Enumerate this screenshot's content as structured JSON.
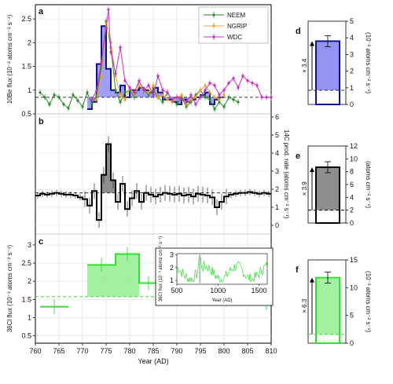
{
  "colors": {
    "neem": "#2a8a2a",
    "ngrip": "#f0a030",
    "wdc": "#c030c0",
    "be_fill": "#8080f0",
    "be_step": "#10108c",
    "c14_fill": "#7a7a7a",
    "cl_line": "#33dd33",
    "cl_fill": "#90ee90",
    "baseline": "#333333"
  },
  "chart_data": [
    {
      "panel": "a",
      "type": "line",
      "ylabel": "10Be flux (10⁻² atoms cm⁻² s⁻¹)",
      "ylim": [
        0.5,
        2.8
      ],
      "xlim": [
        760,
        810
      ],
      "yticks": [
        "0.5",
        "1",
        "1.5",
        "2",
        "2.5"
      ],
      "legend": [
        "NEEM",
        "NGRIP",
        "WDC"
      ],
      "legend_position": "top-right",
      "baseline": 0.85,
      "series": [
        {
          "name": "NEEM",
          "x": [
            761,
            762,
            763,
            764,
            765,
            766,
            767,
            768,
            769,
            770,
            771,
            772,
            773,
            774,
            775,
            776,
            777,
            778,
            779,
            780,
            781,
            782,
            783,
            784,
            785,
            786,
            787,
            788,
            789,
            790,
            791,
            792,
            793,
            794,
            795,
            796,
            797,
            798,
            799,
            800,
            801,
            802,
            803
          ],
          "y": [
            0.95,
            0.85,
            0.7,
            0.9,
            0.85,
            0.7,
            0.62,
            0.9,
            0.78,
            0.65,
            0.95,
            0.7,
            0.9,
            1.5,
            2.45,
            1.9,
            1.0,
            0.75,
            0.95,
            1.0,
            0.85,
            1.1,
            1.0,
            0.9,
            1.0,
            0.85,
            0.75,
            0.95,
            0.8,
            0.7,
            0.85,
            0.65,
            0.75,
            0.9,
            1.0,
            0.85,
            0.8,
            0.6,
            0.75,
            0.65,
            0.85,
            0.8,
            0.75
          ]
        },
        {
          "name": "NGRIP",
          "x": [
            773,
            774,
            775,
            776,
            777,
            778,
            779,
            780,
            781,
            782,
            783,
            784,
            785,
            786,
            787,
            788,
            789,
            790,
            791,
            792,
            793,
            794,
            795,
            796,
            797,
            798,
            799,
            800
          ],
          "y": [
            0.8,
            1.3,
            2.4,
            2.0,
            1.3,
            0.9,
            0.8,
            1.05,
            0.9,
            1.1,
            1.0,
            0.95,
            1.1,
            0.85,
            0.9,
            0.8,
            0.75,
            0.85,
            0.9,
            0.7,
            0.8,
            0.85,
            1.0,
            1.1,
            0.95,
            0.85,
            0.8,
            0.9
          ]
        },
        {
          "name": "WDC",
          "x": [
            772,
            773,
            774,
            775,
            775.5,
            776,
            777,
            778,
            779,
            780,
            781,
            782,
            783,
            784,
            785,
            786,
            787,
            788,
            789,
            790,
            791,
            792,
            793,
            794,
            795,
            796,
            797,
            798,
            799,
            800,
            801,
            802,
            803,
            804,
            805,
            806,
            807,
            808,
            809,
            810
          ],
          "y": [
            0.8,
            1.0,
            1.6,
            2.3,
            2.7,
            1.8,
            1.35,
            1.9,
            1.2,
            1.05,
            0.95,
            1.2,
            1.0,
            1.1,
            0.9,
            1.3,
            1.0,
            0.95,
            0.8,
            0.85,
            0.8,
            0.75,
            0.9,
            0.7,
            0.85,
            1.0,
            1.15,
            1.1,
            0.9,
            1.0,
            1.15,
            1.25,
            1.05,
            1.3,
            1.2,
            1.15,
            1.1,
            0.85,
            0.85,
            0.85
          ]
        },
        {
          "name": "composite",
          "type": "step",
          "edges": [
            771,
            772,
            773,
            774,
            775,
            776,
            777,
            778,
            779,
            780,
            781,
            782,
            783,
            784,
            785,
            786,
            787,
            788,
            789,
            790,
            791,
            792,
            793,
            794,
            795,
            796,
            797,
            798,
            799,
            800
          ],
          "y": [
            0.6,
            0.75,
            1.55,
            2.35,
            1.45,
            1.0,
            0.95,
            1.1,
            0.85,
            1.0,
            1.0,
            1.05,
            1.0,
            0.95,
            1.05,
            0.95,
            0.8,
            0.8,
            0.75,
            0.7,
            0.8,
            0.75,
            0.8,
            0.85,
            0.9,
            0.95,
            0.7,
            0.8,
            0.85
          ]
        }
      ]
    },
    {
      "panel": "b",
      "type": "line",
      "ylabel": "14C prod. rate (atoms cm⁻² s⁻¹)",
      "ylim": [
        0,
        6
      ],
      "yticks": [
        "0",
        "1",
        "2",
        "3",
        "4",
        "5",
        "6"
      ],
      "baseline": 1.8,
      "series": [
        {
          "name": "14C",
          "type": "step",
          "edges": [
            760,
            761,
            762,
            763,
            764,
            765,
            766,
            767,
            768,
            769,
            770,
            771,
            772,
            773,
            774,
            775,
            776,
            777,
            778,
            779,
            780,
            781,
            782,
            783,
            784,
            785,
            786,
            787,
            788,
            789,
            790,
            791,
            792,
            793,
            794,
            795,
            796,
            797,
            798,
            799,
            800,
            801,
            802,
            803,
            804,
            805,
            806,
            807,
            808,
            809,
            810
          ],
          "y": [
            1.65,
            1.75,
            1.7,
            1.75,
            1.8,
            1.75,
            1.7,
            1.7,
            1.65,
            1.55,
            1.45,
            1.1,
            1.9,
            0.3,
            2.8,
            4.5,
            2.5,
            1.3,
            2.3,
            0.9,
            1.5,
            1.9,
            1.3,
            1.8,
            1.7,
            1.6,
            1.7,
            1.8,
            1.75,
            1.7,
            1.75,
            1.65,
            1.7,
            1.6,
            1.75,
            1.7,
            1.65,
            1.55,
            1.0,
            1.3,
            1.6,
            1.7,
            1.75,
            1.8,
            1.8,
            1.85,
            1.8,
            1.75,
            1.8,
            1.75
          ]
        }
      ]
    },
    {
      "panel": "c",
      "type": "line",
      "ylabel": "36Cl flux (10⁻³ atoms cm⁻² s⁻¹)",
      "ylim": [
        0.3,
        3.3
      ],
      "yticks": [
        "0.5",
        "1",
        "1.5",
        "2",
        "2.5",
        "3"
      ],
      "xlabel": "Year (AD)",
      "xticks": [
        "760",
        "765",
        "770",
        "775",
        "780",
        "785",
        "790",
        "795",
        "800",
        "805",
        "810"
      ],
      "baseline": 1.58,
      "series": [
        {
          "name": "36Cl",
          "type": "segments",
          "segments": [
            [
              761,
              767,
              1.3
            ],
            [
              771,
              777,
              2.45
            ],
            [
              777,
              782,
              2.75
            ],
            [
              782,
              786,
              1.95
            ],
            [
              786,
              792,
              1.6
            ],
            [
              798,
              803,
              1.5
            ],
            [
              803,
              808,
              1.85
            ],
            [
              808,
              810,
              1.4
            ]
          ]
        }
      ],
      "inset": {
        "ylabel": "36Cl flux (10⁻³ atoms cm⁻² s⁻¹)",
        "xlabel": "Year (AD)",
        "xticks": [
          "500",
          "1000",
          "1500"
        ],
        "yticks": [
          "1",
          "2",
          "3"
        ],
        "xlim": [
          500,
          1600
        ],
        "ylim": [
          0.7,
          3.1
        ]
      }
    },
    {
      "panel": "d",
      "type": "bar",
      "ylabel": "(10⁻² atoms cm⁻² s⁻¹)",
      "ylim": [
        0,
        5
      ],
      "yticks": [
        "0",
        "1",
        "2",
        "3",
        "4",
        "5"
      ],
      "values": [
        3.8
      ],
      "baseline": 0.85,
      "annotation": "× 3.4"
    },
    {
      "panel": "e",
      "type": "bar",
      "ylabel": "(atoms cm⁻² s⁻¹)",
      "ylim": [
        0,
        12
      ],
      "yticks": [
        "0",
        "2",
        "4",
        "6",
        "8",
        "10",
        "12"
      ],
      "values": [
        8.7
      ],
      "baseline": 2.0,
      "annotation": "× 3.9"
    },
    {
      "panel": "f",
      "type": "bar",
      "ylabel": "(10⁻³ atoms cm⁻² s⁻¹)",
      "ylim": [
        0,
        15
      ],
      "yticks": [
        "0",
        "5",
        "10",
        "15"
      ],
      "values": [
        11.8
      ],
      "baseline": 1.58,
      "annotation": "× 6.3"
    }
  ]
}
